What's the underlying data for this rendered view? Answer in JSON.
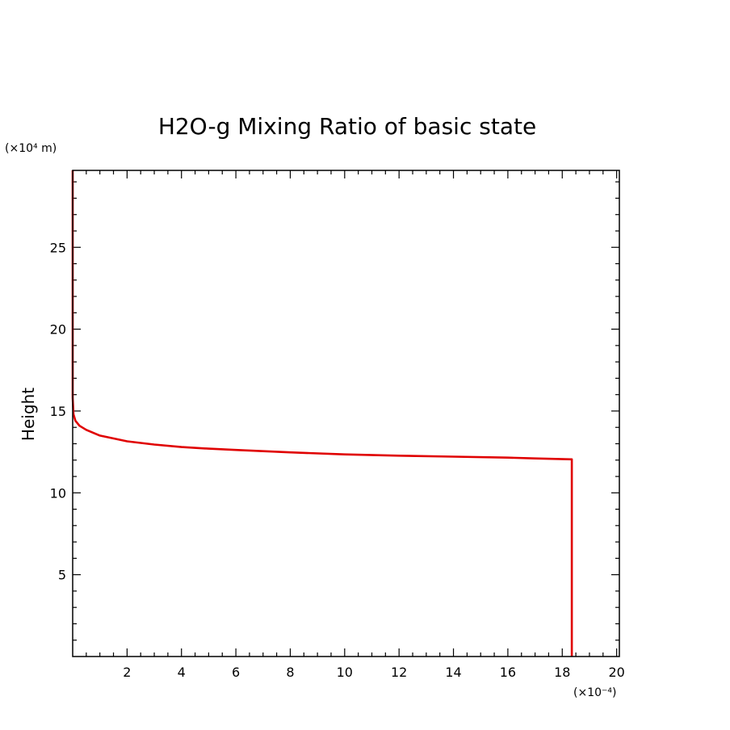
{
  "chart_data": {
    "type": "line",
    "title": "H2O-g Mixing Ratio of basic state",
    "xlabel": "",
    "ylabel": "Height",
    "x_unit_label": "(×10⁻⁴)",
    "y_unit_label": "(×10⁴ m)",
    "xlim": [
      0,
      20.1
    ],
    "ylim": [
      0,
      29.7
    ],
    "x_ticks": [
      2,
      4,
      6,
      8,
      10,
      12,
      14,
      16,
      18,
      20
    ],
    "y_ticks": [
      5,
      10,
      15,
      20,
      25
    ],
    "x_minor_step": 0.5,
    "y_minor_step": 1,
    "grid": false,
    "series": [
      {
        "color": "#e00000",
        "x": [
          0,
          0,
          0.03,
          0.1,
          0.25,
          0.5,
          1,
          2,
          3,
          4,
          5,
          6,
          8,
          10,
          12,
          14,
          16,
          17,
          18.35,
          18.35
        ],
        "y": [
          29.7,
          15.8,
          14.8,
          14.4,
          14.1,
          13.85,
          13.5,
          13.15,
          12.95,
          12.8,
          12.7,
          12.62,
          12.47,
          12.35,
          12.27,
          12.21,
          12.15,
          12.1,
          12.05,
          0
        ]
      }
    ]
  }
}
